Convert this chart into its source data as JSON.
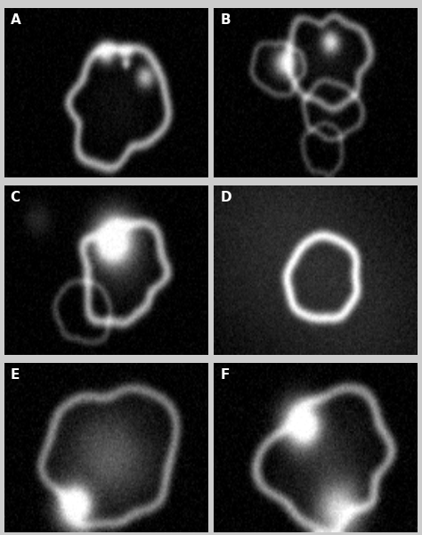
{
  "layout": {
    "rows": 3,
    "cols": 2
  },
  "labels": [
    "A",
    "B",
    "C",
    "D",
    "E",
    "F"
  ],
  "label_fontsize": 11,
  "label_color": "white",
  "fig_background": "#cccccc",
  "figsize": [
    4.74,
    6.0
  ],
  "dpi": 100
}
